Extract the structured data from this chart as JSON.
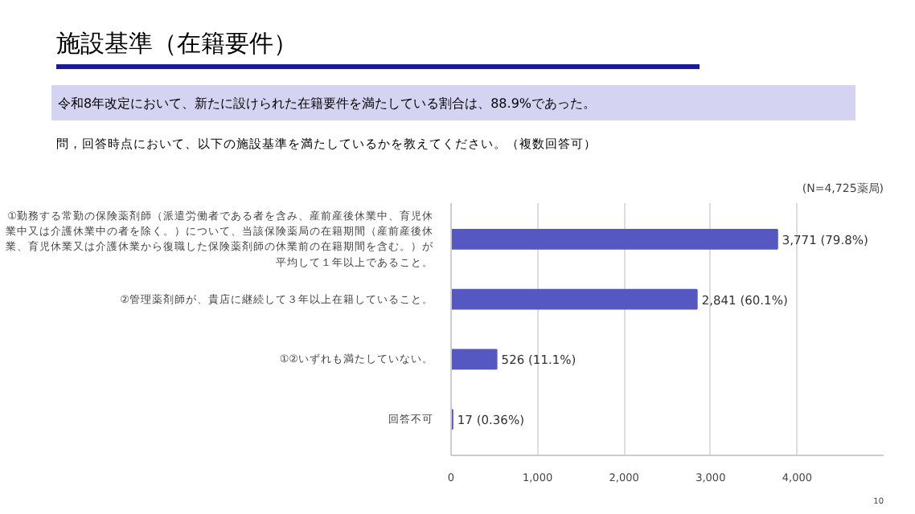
{
  "chart_data": {
    "type": "bar",
    "orientation": "horizontal",
    "title": "施設基準（在籍要件）",
    "subtitle": "令和8年改定において、新たに設けられた在籍要件を満たしている割合は、88.9%であった。",
    "annotations": [
      "問，回答時点において、以下の施設基準を満たしているかを教えてください。（複数回答可）",
      "(N=4,725薬局)",
      "10"
    ],
    "categories": [
      "①勤務する常勤の保険薬剤師（派遣労働者である者を含み、産前産後休業中、育児休業中又は介護休業中の者を除く。）について、当該保険薬局の在籍期間（産前産後休業、育児休業又は介護休業から復職した保険薬剤師の休業前の在籍期間を含む。）が平均して１年以上であること。",
      "②管理薬剤師が、貴店に継続して３年以上在籍していること。",
      "①②いずれも満たしていない。",
      "回答不可"
    ],
    "values": [
      3771,
      2841,
      526,
      17
    ],
    "value_labels": [
      "3,771 (79.8%)",
      "2,841 (60.1%)",
      "526 (11.1%)",
      "17 (0.36%)"
    ],
    "color": "#5558c0",
    "xlim": [
      0,
      5000
    ],
    "xticks": [
      {
        "value": 0,
        "label": "0"
      },
      {
        "value": 1000,
        "label": "1,000"
      },
      {
        "value": 2000,
        "label": "2,000"
      },
      {
        "value": 3000,
        "label": "3,000"
      },
      {
        "value": 4000,
        "label": "4,000"
      }
    ],
    "grid": "x"
  }
}
